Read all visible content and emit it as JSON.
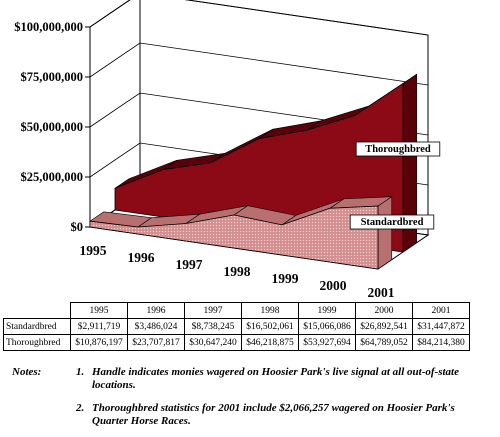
{
  "chart_data": {
    "type": "area",
    "title": "",
    "categories": [
      "1995",
      "1996",
      "1997",
      "1998",
      "1999",
      "2000",
      "2001"
    ],
    "yticks": [
      "$0",
      "$25,000,000",
      "$50,000,000",
      "$75,000,000",
      "$100,000,000"
    ],
    "ylim": [
      0,
      100000000
    ],
    "series": [
      {
        "name": "Standardbred",
        "values": [
          2911719,
          3486024,
          8738245,
          16502061,
          15066086,
          26892541,
          31447872
        ]
      },
      {
        "name": "Thoroughbred",
        "values": [
          10876197,
          23707817,
          30647240,
          46218875,
          53927694,
          64789052,
          84214380
        ]
      }
    ],
    "colors": {
      "Thoroughbred": "#8b0a16",
      "Thoroughbred_dark": "#5a0009",
      "Standardbred": "#d89596",
      "Standardbred_dark": "#b7706f"
    },
    "style": "3D stacked-depth area chart with wall gridlines"
  },
  "table": {
    "years": [
      "1995",
      "1996",
      "1997",
      "1998",
      "1999",
      "2000",
      "2001"
    ],
    "rows": [
      {
        "label": "Standardbred",
        "cells": [
          "$2,911,719",
          "$3,486,024",
          "$8,738,245",
          "$16,502,061",
          "$15,066,086",
          "$26,892,541",
          "$31,447,872"
        ]
      },
      {
        "label": "Thoroughbred",
        "cells": [
          "$10,876,197",
          "$23,707,817",
          "$30,647,240",
          "$46,218,875",
          "$53,927,694",
          "$64,789,052",
          "$84,214,380"
        ]
      }
    ]
  },
  "notes": {
    "label": "Notes:",
    "items": [
      {
        "num": "1.",
        "text": "Handle indicates monies wagered on Hoosier Park's live signal at all out-of-state locations."
      },
      {
        "num": "2.",
        "text": "Thoroughbred statistics for 2001 include $2,066,257 wagered on Hoosier Park's Quarter Horse Races."
      }
    ]
  }
}
